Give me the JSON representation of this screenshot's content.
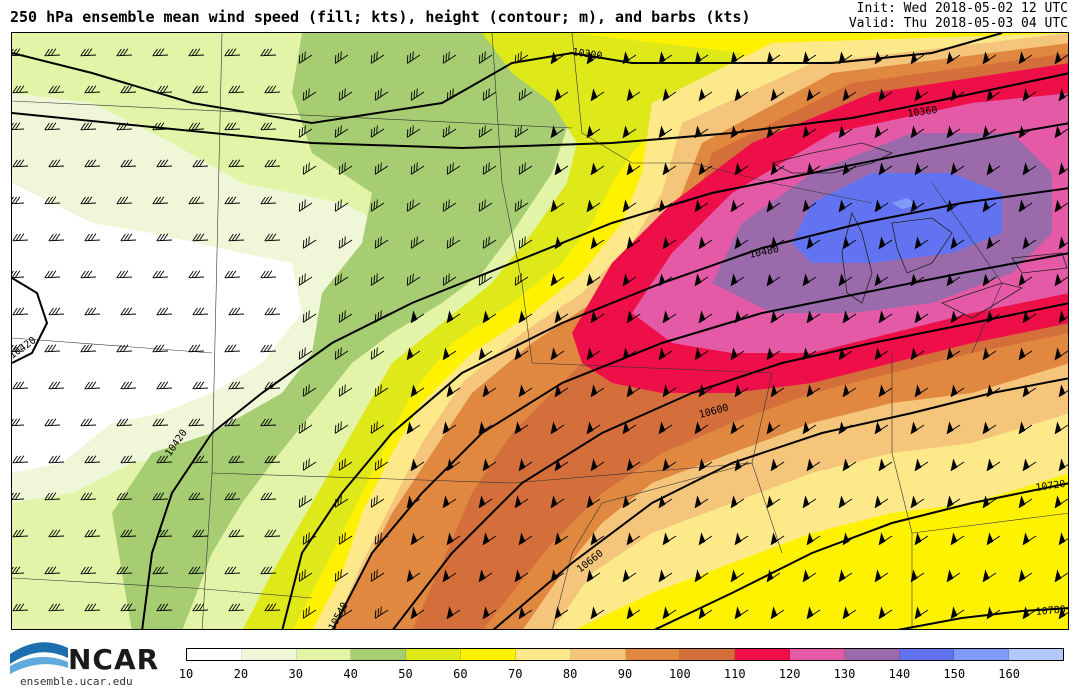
{
  "header": {
    "title": "250 hPa ensemble mean wind speed (fill; kts), height (contour; m), and barbs (kts)",
    "init": "Init: Wed 2018-05-02 12 UTC",
    "valid": "Valid: Thu 2018-05-03 04 UTC"
  },
  "logo": {
    "name": "NCAR",
    "url": "ensemble.ucar.edu"
  },
  "colorbar": {
    "ticks": [
      "10",
      "20",
      "30",
      "40",
      "50",
      "60",
      "70",
      "80",
      "90",
      "100",
      "110",
      "120",
      "130",
      "140",
      "150",
      "160"
    ],
    "colors": [
      "#ffffff",
      "#f0f6d8",
      "#e3f4a8",
      "#a6cd72",
      "#dfe818",
      "#fff200",
      "#fde98a",
      "#f4c57b",
      "#e18840",
      "#d46f3b",
      "#ee0e48",
      "#e55aa6",
      "#9b6aab",
      "#6273f2",
      "#7f9cfa",
      "#b3c9fc"
    ]
  },
  "map": {
    "contour_labels": [
      "10300",
      "10360",
      "10420",
      "10420",
      "10480",
      "10540",
      "10600",
      "10660",
      "10720",
      "10780"
    ]
  }
}
